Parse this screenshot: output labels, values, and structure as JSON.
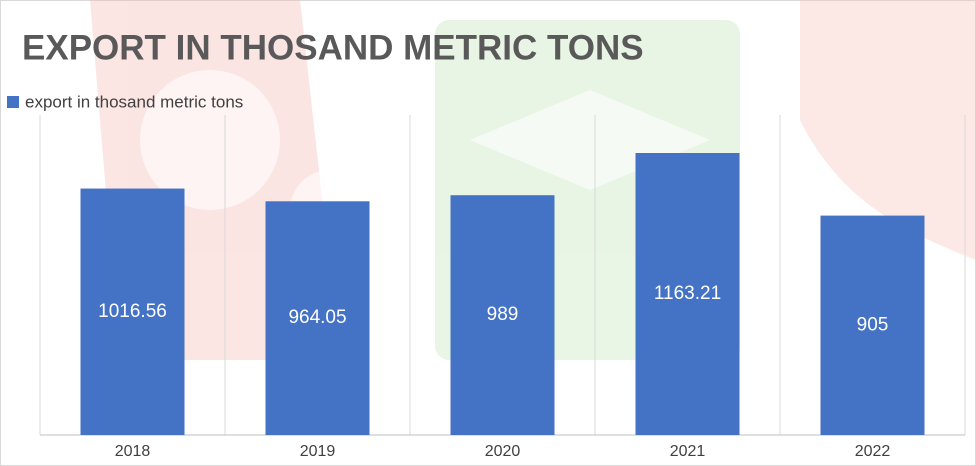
{
  "chart_data": {
    "type": "bar",
    "title": "EXPORT IN THOSAND METRIC TONS",
    "categories": [
      "2018",
      "2019",
      "2020",
      "2021",
      "2022"
    ],
    "series": [
      {
        "name": "export in thosand metric tons",
        "color": "#4472c4",
        "values": [
          1016.56,
          964.05,
          989,
          1163.21,
          905
        ]
      }
    ],
    "grid": true,
    "legend": "top-left"
  }
}
